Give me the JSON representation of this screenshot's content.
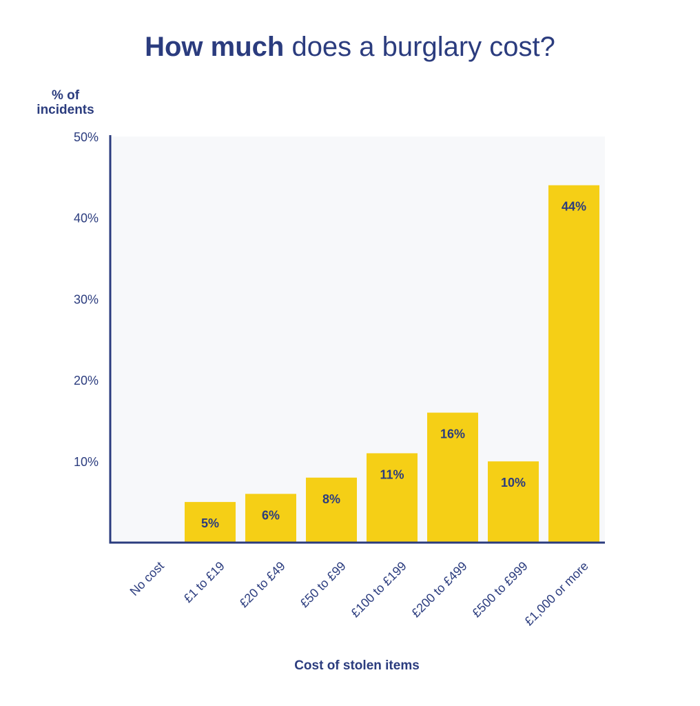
{
  "title": {
    "bold": "How much",
    "rest": " does a burglary cost?"
  },
  "chart_data": {
    "type": "bar",
    "title": "How much does a burglary cost?",
    "ylabel": "% of incidents",
    "xlabel": "Cost of stolen items",
    "categories": [
      "No cost",
      "£1 to £19",
      "£20 to £49",
      "£50 to £99",
      "£100 to £199",
      "£200 to £499",
      "£500 to £999",
      "£1,000 or more"
    ],
    "values": [
      0,
      5,
      6,
      8,
      11,
      16,
      10,
      44
    ],
    "value_labels": [
      "",
      "5%",
      "6%",
      "8%",
      "11%",
      "16%",
      "10%",
      "44%"
    ],
    "ylim": [
      0,
      50
    ],
    "yticks": [
      10,
      20,
      30,
      40,
      50
    ],
    "ytick_labels": [
      "10%",
      "20%",
      "30%",
      "40%",
      "50%"
    ],
    "grid": false,
    "colors": {
      "bar": "#f5cf16",
      "axis": "#2b3c7e",
      "text": "#2b3c7e",
      "plot_bg": "#f7f8fa"
    }
  }
}
